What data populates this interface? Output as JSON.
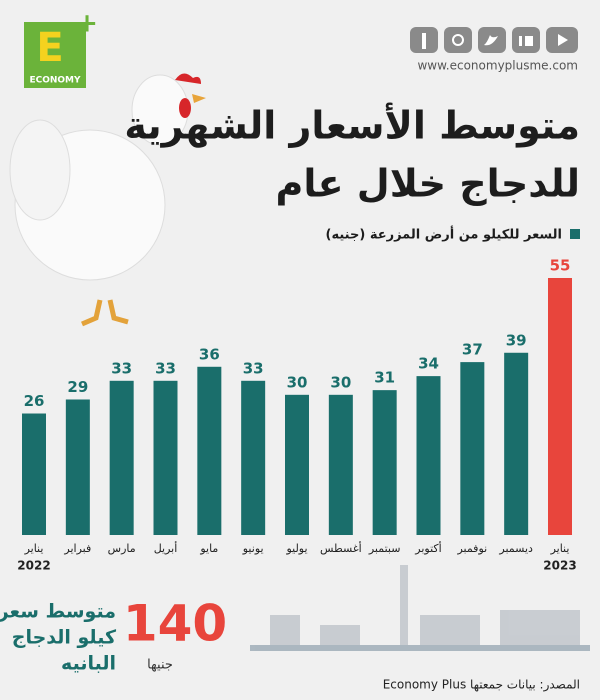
{
  "logo": {
    "letter": "E",
    "plus": "+",
    "name": "ECONOMY"
  },
  "website": "www.economyplusme.com",
  "chart_data": {
    "type": "bar",
    "title_lines": [
      "متوسط الأسعار الشهرية",
      "للدجاج خلال عام"
    ],
    "legend": "السعر للكيلو من أرض المزرعة (جنيه)",
    "legend_color": "#1a6e6b",
    "categories": [
      "يناير",
      "فبراير",
      "مارس",
      "أبريل",
      "مايو",
      "يونيو",
      "يوليو",
      "أغسطس",
      "سبتمبر",
      "أكتوبر",
      "نوفمبر",
      "ديسمبر",
      "يناير"
    ],
    "category_years": [
      "2022",
      null,
      null,
      null,
      null,
      null,
      null,
      null,
      null,
      null,
      null,
      null,
      "2023"
    ],
    "values": [
      26,
      29,
      33,
      33,
      36,
      33,
      30,
      30,
      31,
      34,
      37,
      39,
      55
    ],
    "colors": [
      "#1a6e6b",
      "#1a6e6b",
      "#1a6e6b",
      "#1a6e6b",
      "#1a6e6b",
      "#1a6e6b",
      "#1a6e6b",
      "#1a6e6b",
      "#1a6e6b",
      "#1a6e6b",
      "#1a6e6b",
      "#1a6e6b",
      "#e8453c"
    ]
  },
  "highlight": {
    "caption_lines": [
      "متوسط سعر",
      "كيلو الدجاج",
      "البانيه"
    ],
    "value": "140",
    "unit": "جنيها"
  },
  "source": "المصدر: بيانات جمعتها Economy Plus"
}
